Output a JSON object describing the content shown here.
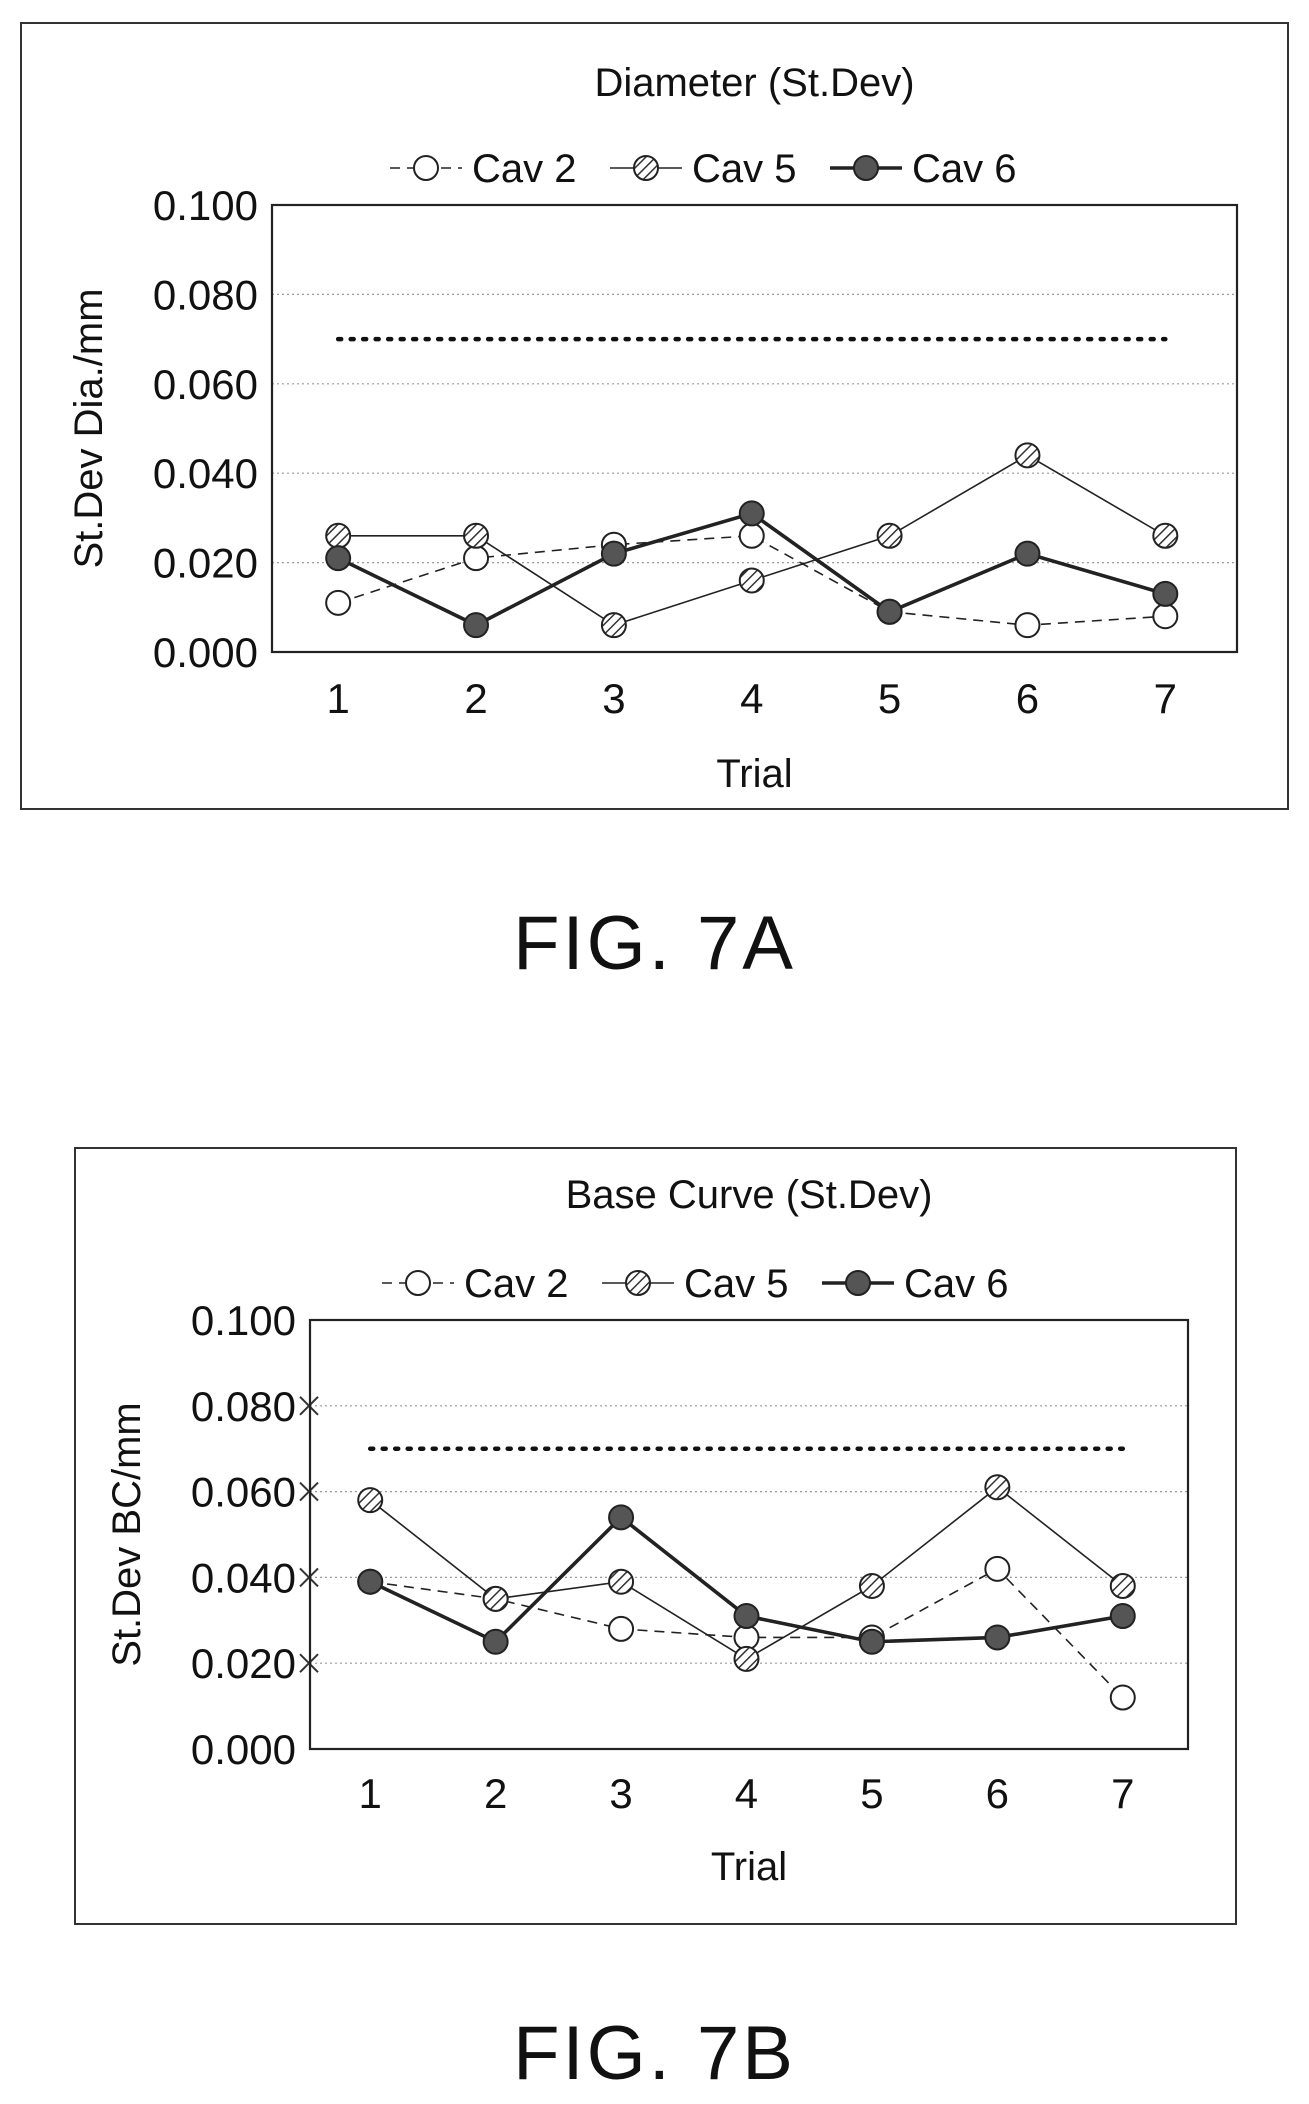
{
  "chart_data": [
    {
      "type": "line",
      "title": "Diameter (St.Dev)",
      "xlabel": "Trial",
      "ylabel": "St.Dev Dia./mm",
      "categories": [
        "1",
        "2",
        "3",
        "4",
        "5",
        "6",
        "7"
      ],
      "ylim": [
        0,
        0.1
      ],
      "yticks": [
        "0.000",
        "0.020",
        "0.040",
        "0.060",
        "0.080",
        "0.100"
      ],
      "grid": true,
      "legend": "top-center",
      "reference_line": 0.07,
      "series": [
        {
          "name": "Cav 2",
          "values": [
            0.011,
            0.021,
            0.024,
            0.026,
            0.009,
            0.006,
            0.008
          ]
        },
        {
          "name": "Cav 5",
          "values": [
            0.026,
            0.026,
            0.006,
            0.016,
            0.026,
            0.044,
            0.026
          ]
        },
        {
          "name": "Cav 6",
          "values": [
            0.021,
            0.006,
            0.022,
            0.031,
            0.009,
            0.022,
            0.013
          ]
        }
      ]
    },
    {
      "type": "line",
      "title": "Base Curve (St.Dev)",
      "xlabel": "Trial",
      "ylabel": "St.Dev BC/mm",
      "categories": [
        "1",
        "2",
        "3",
        "4",
        "5",
        "6",
        "7"
      ],
      "ylim": [
        0,
        0.1
      ],
      "yticks": [
        "0.000",
        "0.020",
        "0.040",
        "0.060",
        "0.080",
        "0.100"
      ],
      "grid": true,
      "legend": "top-center",
      "reference_line": 0.07,
      "series": [
        {
          "name": "Cav 2",
          "values": [
            0.039,
            0.035,
            0.028,
            0.026,
            0.026,
            0.042,
            0.012
          ]
        },
        {
          "name": "Cav 5",
          "values": [
            0.058,
            0.035,
            0.039,
            0.021,
            0.038,
            0.061,
            0.038
          ]
        },
        {
          "name": "Cav 6",
          "values": [
            0.039,
            0.025,
            0.054,
            0.031,
            0.025,
            0.026,
            0.031
          ]
        }
      ]
    }
  ],
  "captions": {
    "fig_a": "FIG. 7A",
    "fig_b": "FIG. 7B"
  },
  "colors": {
    "axis": "#222222",
    "cav2_fill": "#ffffff",
    "cav5_fill": "#d9d9d9",
    "cav6_fill": "#555555",
    "grid": "#9a9a9a"
  }
}
